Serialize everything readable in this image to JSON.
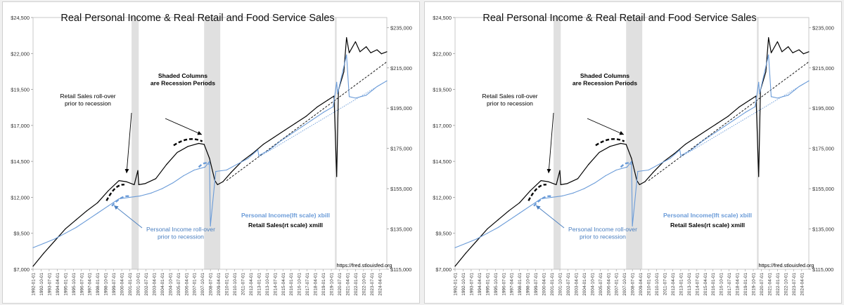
{
  "chart_data": [
    {
      "type": "line",
      "title": "Real Personal Income & Real Retail and Food Service Sales",
      "xlabel": "",
      "ylabel_left": "",
      "ylabel_right": "",
      "left_axis": {
        "ylim": [
          7000,
          24500
        ],
        "ticks": [
          7000,
          9500,
          12000,
          14500,
          17000,
          19500,
          22000,
          24500
        ],
        "tick_labels": [
          "$7,000",
          "$9,500",
          "$12,000",
          "$14,500",
          "$17,000",
          "$19,500",
          "$22,000",
          "$24,500"
        ]
      },
      "right_axis": {
        "ylim": [
          115000,
          240000
        ],
        "ticks": [
          115000,
          135000,
          155000,
          175000,
          195000,
          215000,
          235000
        ],
        "tick_labels": [
          "$115,000",
          "$135,000",
          "$155,000",
          "$175,000",
          "$195,000",
          "$215,000",
          "$235,000"
        ]
      },
      "x_range": [
        "1992-01-01",
        "2024-12-01"
      ],
      "x_tick_labels": [
        "1992-01-01",
        "1992-10-01",
        "1993-07-01",
        "1994-04-01",
        "1995-01-01",
        "1995-10-01",
        "1996-07-01",
        "1997-04-01",
        "1998-01-01",
        "1998-10-01",
        "1999-07-01",
        "2000-04-01",
        "2001-01-01",
        "2001-10-01",
        "2002-07-01",
        "2003-04-01",
        "2004-01-01",
        "2004-10-01",
        "2005-07-01",
        "2006-04-01",
        "2007-01-01",
        "2007-10-01",
        "2008-07-01",
        "2009-04-01",
        "2010-01-01",
        "2010-10-01",
        "2011-07-01",
        "2012-04-01",
        "2013-01-01",
        "2013-10-01",
        "2014-07-01",
        "2015-04-01",
        "2016-01-01",
        "2016-10-01",
        "2017-07-01",
        "2018-04-01",
        "2019-01-01",
        "2019-10-01",
        "2020-07-01",
        "2021-04-01",
        "2022-01-01",
        "2022-10-01",
        "2023-07-01",
        "2024-04-01"
      ],
      "recessions": [
        [
          "2001-03-01",
          "2001-11-01"
        ],
        [
          "2007-12-01",
          "2009-06-01"
        ],
        [
          "2020-02-01",
          "2020-04-01"
        ]
      ],
      "recession_color": "#e0e0e0",
      "series": [
        {
          "name": "Retail Sales(rt scale) xmill",
          "axis": "right",
          "color": "#000000",
          "x": [
            "1992-01-01",
            "1993-01-01",
            "1994-01-01",
            "1995-01-01",
            "1996-01-01",
            "1997-01-01",
            "1998-01-01",
            "1999-01-01",
            "2000-01-01",
            "2000-09-01",
            "2001-06-01",
            "2001-10-01",
            "2001-11-01",
            "2002-06-01",
            "2003-06-01",
            "2004-06-01",
            "2005-06-01",
            "2006-06-01",
            "2007-06-01",
            "2007-12-01",
            "2008-06-01",
            "2008-12-01",
            "2009-03-01",
            "2009-09-01",
            "2010-06-01",
            "2011-06-01",
            "2012-06-01",
            "2013-06-01",
            "2014-06-01",
            "2015-06-01",
            "2016-06-01",
            "2017-06-01",
            "2018-06-01",
            "2019-06-01",
            "2020-01-01",
            "2020-04-01",
            "2020-06-01",
            "2020-12-01",
            "2021-03-01",
            "2021-06-01",
            "2022-01-01",
            "2022-06-01",
            "2023-01-01",
            "2023-06-01",
            "2024-01-01",
            "2024-06-01",
            "2024-12-01"
          ],
          "values": [
            116500,
            123000,
            129000,
            135000,
            139500,
            144000,
            148000,
            154000,
            159000,
            158500,
            157000,
            164000,
            157000,
            157500,
            160000,
            167000,
            173000,
            176000,
            177500,
            177000,
            170000,
            159000,
            157000,
            158500,
            163000,
            168500,
            172500,
            177000,
            180500,
            184000,
            187500,
            191000,
            195500,
            199000,
            201000,
            161000,
            204000,
            213000,
            230000,
            222500,
            228000,
            223000,
            225500,
            222500,
            224000,
            222000,
            223000
          ]
        },
        {
          "name": "Personal Income(lft scale) xbill",
          "axis": "left",
          "color": "#6a9bd8",
          "x": [
            "1992-01-01",
            "1993-01-01",
            "1994-01-01",
            "1995-01-01",
            "1996-01-01",
            "1997-01-01",
            "1998-01-01",
            "1999-01-01",
            "2000-01-01",
            "2001-01-01",
            "2002-01-01",
            "2003-01-01",
            "2004-01-01",
            "2005-01-01",
            "2006-01-01",
            "2007-01-01",
            "2008-01-01",
            "2008-06-01",
            "2008-07-01",
            "2009-01-01",
            "2010-01-01",
            "2011-01-01",
            "2012-01-01",
            "2012-12-01",
            "2013-01-01",
            "2014-01-01",
            "2015-01-01",
            "2016-01-01",
            "2017-01-01",
            "2018-01-01",
            "2019-01-01",
            "2019-12-01",
            "2020-04-01",
            "2020-05-01",
            "2021-03-01",
            "2021-06-01",
            "2022-01-01",
            "2023-01-01",
            "2024-01-01",
            "2024-12-01"
          ],
          "values": [
            8500,
            8800,
            9100,
            9500,
            9900,
            10400,
            10900,
            11400,
            11900,
            12000,
            12100,
            12300,
            12600,
            13000,
            13500,
            13900,
            14100,
            14500,
            10000,
            13800,
            13900,
            14300,
            14700,
            15300,
            14900,
            15300,
            15900,
            16400,
            16900,
            17400,
            17900,
            18300,
            20000,
            19200,
            21900,
            19000,
            18900,
            19100,
            19700,
            20100
          ]
        }
      ],
      "trendlines": [
        {
          "axis": "right",
          "color": "#000000",
          "style": "dashed",
          "x": [
            "2010-01-01",
            "2024-12-01"
          ],
          "values": [
            159000,
            218000
          ]
        },
        {
          "axis": "left",
          "color": "#6a9bd8",
          "style": "dotted",
          "x": [
            "2013-01-01",
            "2024-12-01"
          ],
          "values": [
            14800,
            20100
          ]
        }
      ],
      "emphasis_arcs": [
        {
          "axis": "right",
          "color": "#000000",
          "x": [
            "1998-11-01",
            "1999-09-01",
            "2000-07-01"
          ],
          "values": [
            149000,
            155500,
            157000
          ]
        },
        {
          "axis": "right",
          "color": "#000000",
          "x": [
            "2005-02-01",
            "2006-07-01",
            "2007-10-01"
          ],
          "values": [
            176500,
            179500,
            178500
          ]
        },
        {
          "axis": "left",
          "color": "#6a9bd8",
          "x": [
            "1999-05-01",
            "2000-05-01",
            "2001-02-01"
          ],
          "values": [
            11400,
            11950,
            12050
          ]
        },
        {
          "axis": "left",
          "color": "#6a9bd8",
          "x": [
            "2007-06-01",
            "2008-01-01",
            "2008-06-01"
          ],
          "values": [
            14100,
            14250,
            14300
          ]
        }
      ],
      "annotations": [
        {
          "lines": [
            "Shaded Columns",
            "are Recession Periods"
          ],
          "color": "#000000",
          "bold": true
        },
        {
          "lines": [
            "Retail Sales roll-over",
            "prior to recession"
          ],
          "color": "#000000",
          "bold": false
        },
        {
          "lines": [
            "Personal Income roll-over",
            "prior to recession"
          ],
          "color": "#4a7fc0",
          "bold": false
        },
        {
          "lines": [
            "Personal Income(lft scale) xbill"
          ],
          "color": "#6a9bd8",
          "bold": true
        },
        {
          "lines": [
            "Retail Sales(rt scale) xmill"
          ],
          "color": "#000000",
          "bold": true
        },
        {
          "lines": [
            "https://fred.stlouisfed.org"
          ],
          "color": "#000000",
          "bold": false
        }
      ]
    }
  ]
}
